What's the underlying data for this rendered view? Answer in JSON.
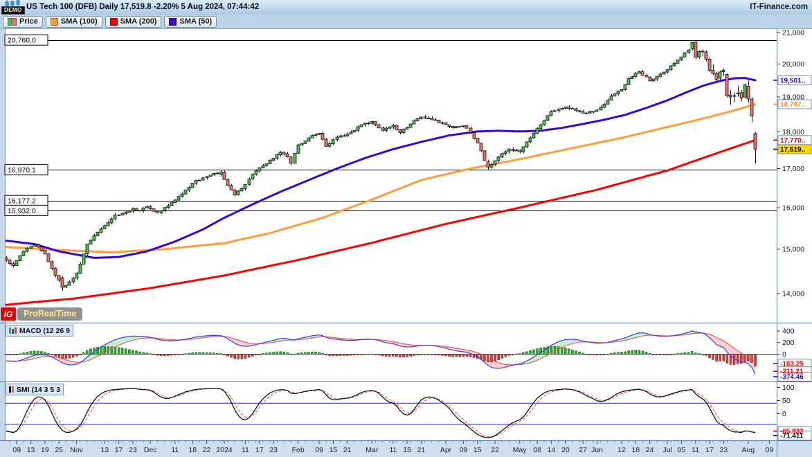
{
  "title_bar": {
    "demo_label": "DEMO",
    "title": "US Tech 100 (DFB) Daily 17,519.8 -2.20% 5 Aug 2024, 07:44:42",
    "brand": "IT-Finance.com"
  },
  "legend": {
    "price_label": "Price",
    "sma100_label": "SMA (100)",
    "sma200_label": "SMA (200)",
    "sma50_label": "SMA (50)"
  },
  "logo": {
    "ig": "IG",
    "prorealtime": "ProRealTime"
  },
  "colors": {
    "candle_up": "#4fbe52",
    "candle_down": "#e2766c",
    "candle_outline": "#111111",
    "sma50": "#3a06d8",
    "sma100": "#ff9d3c",
    "sma200": "#fe0000",
    "level_line": "#000000",
    "axis_line": "#5c82a8",
    "price_box_bg": "#ffd800",
    "macd_line": "#3c3cdc",
    "macd_signal": "#e06060",
    "hist_up": "#33aa33",
    "hist_down": "#cc4444",
    "zero_line": "#2a2ab8",
    "smi_line": "#101010",
    "smi_signal": "#ef6060",
    "smi_hline": "#2222cc",
    "box_blue": "#2a00cc",
    "box_orange": "#ff8c1a",
    "box_red": "#e80000"
  },
  "chart_data": {
    "type": "candlestick+indicators",
    "instrument": "US Tech 100 (DFB)",
    "timeframe": "Daily",
    "last_price": 17519.8,
    "change_pct": -2.2,
    "timestamp": "5 Aug 2024, 07:44:42",
    "price_axis": {
      "scale": "log",
      "tick_step": 1000,
      "tick_min": 14000,
      "tick_max": 21000
    },
    "levels": [
      {
        "value": 20760.0,
        "label": "20,760.0"
      },
      {
        "value": 16970.1,
        "label": "16,970.1"
      },
      {
        "value": 16177.2,
        "label": "16,177.2"
      },
      {
        "value": 15932.0,
        "label": "15,932.0"
      }
    ],
    "axis_boxes": [
      {
        "value": 19501,
        "label": "19,501..",
        "series": "SMA50",
        "color": "#2a00cc",
        "bg": "#ffffff"
      },
      {
        "value": 18787,
        "label": "18,787..",
        "series": "SMA100",
        "color": "#ff8c1a",
        "bg": "#ffffff"
      },
      {
        "value": 17770,
        "label": "17,770..",
        "series": "SMA200",
        "color": "#e80000",
        "bg": "#ffffff"
      },
      {
        "value": 17519.8,
        "label": "17,519..",
        "series": "last-price",
        "color": "#000000",
        "bg": "#ffd800"
      }
    ],
    "x_labels": [
      [
        "09",
        3
      ],
      [
        "13",
        7
      ],
      [
        "19",
        11
      ],
      [
        "25",
        15
      ],
      [
        "Nov",
        20
      ],
      [
        "13",
        28
      ],
      [
        "17",
        32
      ],
      [
        "23",
        36
      ],
      [
        "Dec",
        41
      ],
      [
        "11",
        48
      ],
      [
        "18",
        53
      ],
      [
        "22",
        57
      ],
      [
        "2024",
        62
      ],
      [
        "11",
        68
      ],
      [
        "17",
        72
      ],
      [
        "23",
        76
      ],
      [
        "Feb",
        83
      ],
      [
        "09",
        89
      ],
      [
        "15",
        93
      ],
      [
        "21",
        97
      ],
      [
        "Mar",
        104
      ],
      [
        "11",
        110
      ],
      [
        "15",
        114
      ],
      [
        "21",
        118
      ],
      [
        "Apr",
        125
      ],
      [
        "09",
        130
      ],
      [
        "15",
        134
      ],
      [
        "22",
        139
      ],
      [
        "May",
        146
      ],
      [
        "08",
        151
      ],
      [
        "14",
        155
      ],
      [
        "20",
        159
      ],
      [
        "27",
        164
      ],
      [
        "Jun",
        168
      ],
      [
        "12",
        175
      ],
      [
        "18",
        179
      ],
      [
        "24",
        183
      ],
      [
        "Jul",
        188
      ],
      [
        "05",
        192
      ],
      [
        "11",
        196
      ],
      [
        "17",
        200
      ],
      [
        "23",
        204
      ],
      [
        "Aug",
        211
      ],
      [
        "09",
        217
      ]
    ],
    "candle_count": 214,
    "close_anchors": [
      [
        0,
        14750
      ],
      [
        2,
        14620
      ],
      [
        5,
        14950
      ],
      [
        8,
        15100
      ],
      [
        11,
        14890
      ],
      [
        13,
        14560
      ],
      [
        16,
        14140
      ],
      [
        18,
        14260
      ],
      [
        20,
        14450
      ],
      [
        23,
        15120
      ],
      [
        25,
        15320
      ],
      [
        28,
        15560
      ],
      [
        31,
        15820
      ],
      [
        34,
        15890
      ],
      [
        36,
        15980
      ],
      [
        38,
        15930
      ],
      [
        40,
        16020
      ],
      [
        43,
        15870
      ],
      [
        46,
        16050
      ],
      [
        49,
        16280
      ],
      [
        53,
        16620
      ],
      [
        56,
        16760
      ],
      [
        58,
        16830
      ],
      [
        61,
        16906
      ],
      [
        63,
        16560
      ],
      [
        65,
        16320
      ],
      [
        67,
        16480
      ],
      [
        70,
        16850
      ],
      [
        73,
        17080
      ],
      [
        76,
        17280
      ],
      [
        78,
        17440
      ],
      [
        80,
        17310
      ],
      [
        81,
        17140
      ],
      [
        83,
        17640
      ],
      [
        86,
        17830
      ],
      [
        89,
        17960
      ],
      [
        91,
        17600
      ],
      [
        94,
        17850
      ],
      [
        97,
        17940
      ],
      [
        99,
        18040
      ],
      [
        101,
        18200
      ],
      [
        104,
        18290
      ],
      [
        107,
        18040
      ],
      [
        110,
        18180
      ],
      [
        112,
        17980
      ],
      [
        114,
        18120
      ],
      [
        116,
        18310
      ],
      [
        118,
        18420
      ],
      [
        121,
        18340
      ],
      [
        124,
        18250
      ],
      [
        127,
        18110
      ],
      [
        130,
        18170
      ],
      [
        132,
        17980
      ],
      [
        134,
        17690
      ],
      [
        136,
        17220
      ],
      [
        137,
        17040
      ],
      [
        139,
        17210
      ],
      [
        141,
        17400
      ],
      [
        143,
        17520
      ],
      [
        146,
        17450
      ],
      [
        148,
        17720
      ],
      [
        151,
        18090
      ],
      [
        153,
        18320
      ],
      [
        155,
        18580
      ],
      [
        157,
        18640
      ],
      [
        159,
        18710
      ],
      [
        161,
        18660
      ],
      [
        164,
        18530
      ],
      [
        166,
        18580
      ],
      [
        168,
        18620
      ],
      [
        170,
        18790
      ],
      [
        172,
        19030
      ],
      [
        175,
        19220
      ],
      [
        177,
        19550
      ],
      [
        180,
        19760
      ],
      [
        182,
        19600
      ],
      [
        183,
        19480
      ],
      [
        185,
        19620
      ],
      [
        186,
        19690
      ],
      [
        188,
        19820
      ],
      [
        190,
        20020
      ],
      [
        192,
        20220
      ],
      [
        194,
        20440
      ],
      [
        196,
        20210
      ],
      [
        198,
        20385
      ],
      [
        200,
        19799
      ],
      [
        202,
        19523
      ],
      [
        204,
        19811
      ],
      [
        206,
        18999
      ],
      [
        208,
        19118
      ],
      [
        210,
        19362
      ],
      [
        212,
        18441
      ],
      [
        213,
        17519.8
      ]
    ],
    "pinned_candles": [
      [
        16,
        14350,
        14390,
        14060,
        14140
      ],
      [
        61,
        16850,
        16968,
        16790,
        16906
      ],
      [
        137,
        17180,
        17230,
        16973,
        17040
      ],
      [
        195,
        20480,
        20700,
        20420,
        20675
      ],
      [
        196,
        20690,
        20760,
        20140,
        20210
      ],
      [
        197,
        20220,
        20430,
        20170,
        20390
      ],
      [
        198,
        20400,
        20460,
        20230,
        20385
      ],
      [
        199,
        20380,
        20430,
        20080,
        20150
      ],
      [
        200,
        20150,
        20220,
        19750,
        19799
      ],
      [
        201,
        19810,
        19980,
        19650,
        19705
      ],
      [
        202,
        19700,
        19760,
        19440,
        19523
      ],
      [
        203,
        19560,
        19800,
        19500,
        19754
      ],
      [
        204,
        19760,
        19860,
        19640,
        19811
      ],
      [
        205,
        19680,
        19710,
        18990,
        19032
      ],
      [
        206,
        19060,
        19210,
        18770,
        18999
      ],
      [
        207,
        19040,
        19130,
        18850,
        19023
      ],
      [
        208,
        19090,
        19330,
        19010,
        19118
      ],
      [
        209,
        19130,
        19210,
        18870,
        18977
      ],
      [
        210,
        19000,
        19400,
        18960,
        19362
      ],
      [
        211,
        19320,
        19490,
        18830,
        18943
      ],
      [
        212,
        18940,
        18995,
        18270,
        18441
      ],
      [
        213,
        17950,
        17995,
        17135,
        17519.8
      ]
    ],
    "sma50_anchors": [
      [
        0,
        15200
      ],
      [
        8,
        15120
      ],
      [
        15,
        14950
      ],
      [
        25,
        14800
      ],
      [
        32,
        14820
      ],
      [
        40,
        14950
      ],
      [
        48,
        15180
      ],
      [
        56,
        15470
      ],
      [
        62,
        15750
      ],
      [
        70,
        16080
      ],
      [
        78,
        16400
      ],
      [
        86,
        16700
      ],
      [
        94,
        17000
      ],
      [
        102,
        17280
      ],
      [
        110,
        17520
      ],
      [
        118,
        17720
      ],
      [
        126,
        17900
      ],
      [
        134,
        18010
      ],
      [
        140,
        18030
      ],
      [
        146,
        18010
      ],
      [
        152,
        18030
      ],
      [
        158,
        18110
      ],
      [
        164,
        18220
      ],
      [
        170,
        18340
      ],
      [
        176,
        18480
      ],
      [
        182,
        18680
      ],
      [
        188,
        18900
      ],
      [
        193,
        19120
      ],
      [
        198,
        19330
      ],
      [
        203,
        19480
      ],
      [
        207,
        19560
      ],
      [
        210,
        19570
      ],
      [
        213,
        19501
      ]
    ],
    "sma100_anchors": [
      [
        0,
        15050
      ],
      [
        15,
        14980
      ],
      [
        30,
        14930
      ],
      [
        45,
        15000
      ],
      [
        62,
        15140
      ],
      [
        75,
        15380
      ],
      [
        90,
        15750
      ],
      [
        104,
        16200
      ],
      [
        118,
        16700
      ],
      [
        132,
        17000
      ],
      [
        146,
        17250
      ],
      [
        160,
        17530
      ],
      [
        175,
        17830
      ],
      [
        190,
        18180
      ],
      [
        200,
        18420
      ],
      [
        206,
        18580
      ],
      [
        213,
        18787
      ]
    ],
    "sma200_anchors": [
      [
        0,
        13760
      ],
      [
        20,
        13900
      ],
      [
        41,
        14120
      ],
      [
        62,
        14400
      ],
      [
        83,
        14750
      ],
      [
        104,
        15150
      ],
      [
        125,
        15600
      ],
      [
        146,
        16000
      ],
      [
        168,
        16450
      ],
      [
        188,
        16950
      ],
      [
        213,
        17770
      ]
    ],
    "macd": {
      "label": "MACD (12 26 9",
      "params": [
        12,
        26,
        9
      ],
      "axis_ticks": [
        400,
        200,
        0
      ],
      "boxes": [
        {
          "value": -163.25,
          "label": "-163.25",
          "color": "#e80000"
        },
        {
          "value": -211.21,
          "label": "-211.21",
          "color": "#e80000"
        },
        {
          "value": -374.46,
          "label": "-374.46",
          "color": "#2a00cc"
        }
      ]
    },
    "smi": {
      "label": "SMI (14 3 5 3",
      "params": [
        14,
        3,
        5,
        3
      ],
      "axis_ticks": [
        100,
        50,
        0
      ],
      "hlines": [
        40,
        -40
      ],
      "boxes": [
        {
          "value": -65.832,
          "label": "-65.832",
          "color": "#e80000"
        },
        {
          "value": -71.411,
          "label": "-71.411",
          "color": "#000000"
        }
      ]
    }
  }
}
